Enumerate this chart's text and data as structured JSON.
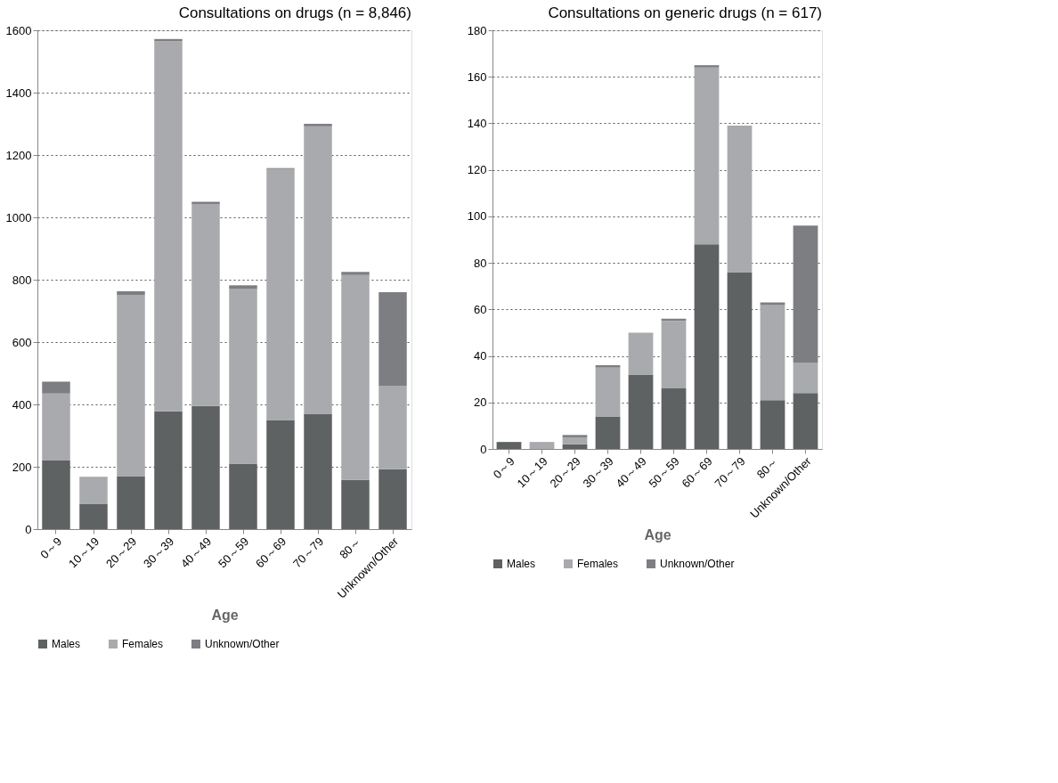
{
  "chart_data": [
    {
      "type": "bar",
      "stacked": true,
      "title": "Consultations on drugs (n = 8,846)",
      "xlabel": "Age",
      "categories": [
        "0～9",
        "10～19",
        "20～29",
        "30～39",
        "40～49",
        "50～59",
        "60～69",
        "70～79",
        "80～",
        "Unknown/Other"
      ],
      "series": [
        {
          "name": "Males",
          "color": "#5f6262",
          "values": [
            220,
            80,
            170,
            378,
            395,
            210,
            350,
            370,
            158,
            192
          ]
        },
        {
          "name": "Females",
          "color": "#a9aaad",
          "values": [
            215,
            88,
            580,
            1187,
            647,
            560,
            805,
            922,
            657,
            268
          ]
        },
        {
          "name": "Unknown/Other",
          "color": "#7d7e82",
          "values": [
            38,
            null,
            13,
            7,
            8,
            12,
            3,
            8,
            10,
            300
          ]
        }
      ],
      "ylim": [
        0,
        1600
      ],
      "yticks": [
        0,
        200,
        400,
        600,
        800,
        1000,
        1200,
        1400,
        1600
      ],
      "grid": "y",
      "legend": "bottom"
    },
    {
      "type": "bar",
      "stacked": true,
      "title": "Consultations on generic drugs (n = 617)",
      "xlabel": "Age",
      "categories": [
        "0～9",
        "10～19",
        "20～29",
        "30～39",
        "40～49",
        "50～59",
        "60～69",
        "70～79",
        "80～",
        "Unknown/Other"
      ],
      "series": [
        {
          "name": "Males",
          "color": "#5f6262",
          "values": [
            3,
            0,
            2,
            14,
            32,
            26,
            88,
            76,
            21,
            24
          ]
        },
        {
          "name": "Females",
          "color": "#a9aaad",
          "values": [
            0,
            3,
            3,
            21,
            18,
            29,
            76,
            63,
            41,
            13
          ]
        },
        {
          "name": "Unknown/Other",
          "color": "#7d7e82",
          "values": [
            0,
            0,
            1,
            1,
            0,
            1,
            1,
            0,
            1,
            59
          ]
        }
      ],
      "ylim": [
        0,
        180
      ],
      "yticks": [
        0,
        20,
        40,
        60,
        80,
        100,
        120,
        140,
        160,
        180
      ],
      "grid": "y",
      "legend": "bottom"
    }
  ]
}
